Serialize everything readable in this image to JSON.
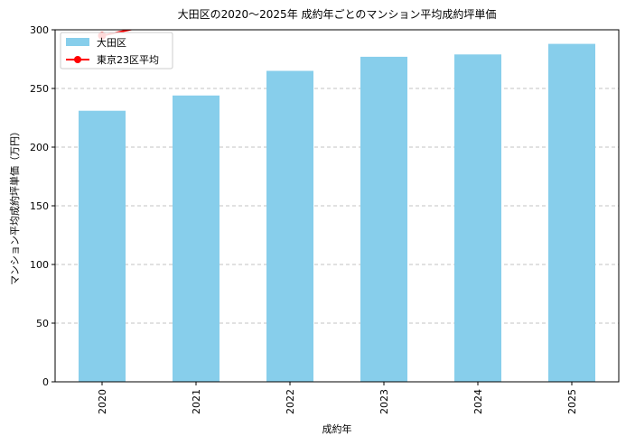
{
  "chart_data": {
    "type": "bar",
    "title": "大田区の2020〜2025年 成約年ごとのマンション平均成約坪単価",
    "xlabel": "成約年",
    "ylabel": "マンション平均成約坪単価（万円）",
    "categories": [
      "2020",
      "2021",
      "2022",
      "2023",
      "2024",
      "2025"
    ],
    "series": [
      {
        "name": "大田区",
        "type": "bar",
        "color": "#87ceeb",
        "values": [
          231,
          244,
          265,
          277,
          279,
          288
        ]
      },
      {
        "name": "東京23区平均",
        "type": "line",
        "color": "#ff0000",
        "values": [
          295,
          312,
          null,
          null,
          null,
          null
        ]
      }
    ],
    "ylim": [
      0,
      300
    ],
    "yticks": [
      0,
      50,
      100,
      150,
      200,
      250,
      300
    ],
    "grid": "y-dashed",
    "legend": "top-left"
  }
}
